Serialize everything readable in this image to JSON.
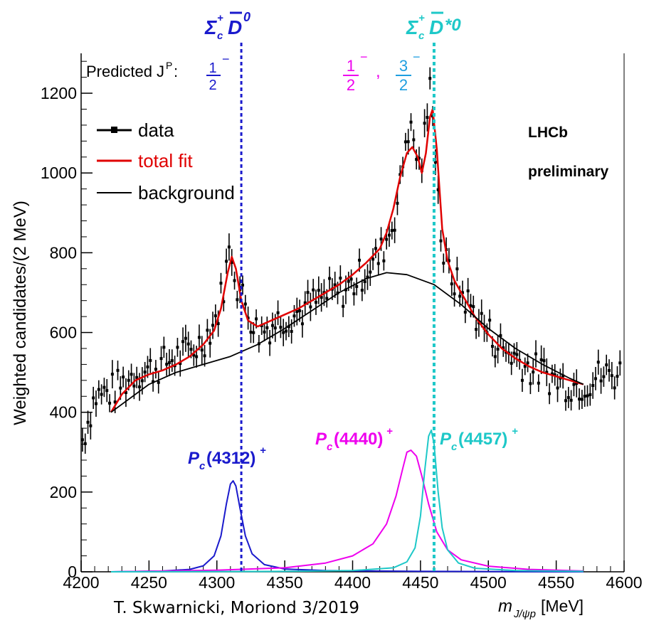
{
  "chart_data": {
    "type": "line",
    "xlabel": "m_{J/ψp} [MeV]",
    "ylabel": "Weighted candidates/(2 MeV)",
    "xlim": [
      4200,
      4600
    ],
    "ylim": [
      0,
      1300
    ],
    "x_ticks": [
      "4200",
      "4250",
      "4300",
      "4350",
      "4400",
      "4450",
      "4500",
      "4550",
      "4600"
    ],
    "y_ticks": [
      "0",
      "200",
      "400",
      "600",
      "800",
      "1000",
      "1200"
    ],
    "legend": {
      "placement": "top-left",
      "entries": [
        "data",
        "total fit",
        "background"
      ]
    },
    "experiment_label": [
      "LHCb",
      "preliminary"
    ],
    "series": [
      {
        "name": "data",
        "color": "#000000",
        "x": [
          4200,
          4210,
          4220,
          4230,
          4240,
          4250,
          4260,
          4270,
          4280,
          4290,
          4300,
          4305,
          4310,
          4315,
          4320,
          4330,
          4340,
          4350,
          4360,
          4370,
          4380,
          4390,
          4400,
          4410,
          4420,
          4430,
          4435,
          4440,
          4445,
          4450,
          4455,
          4458,
          4462,
          4466,
          4470,
          4480,
          4490,
          4500,
          4510,
          4520,
          4530,
          4540,
          4550,
          4560,
          4570,
          4580,
          4590,
          4600
        ],
        "y": [
          320,
          440,
          450,
          470,
          500,
          505,
          520,
          540,
          550,
          580,
          640,
          720,
          820,
          720,
          680,
          600,
          620,
          640,
          650,
          670,
          690,
          700,
          720,
          760,
          790,
          880,
          960,
          1120,
          1080,
          1000,
          1150,
          1240,
          1000,
          800,
          760,
          700,
          650,
          600,
          560,
          540,
          510,
          500,
          480,
          470,
          470,
          490,
          495,
          500
        ]
      },
      {
        "name": "total fit",
        "color": "#e00000",
        "x": [
          4222,
          4230,
          4240,
          4250,
          4260,
          4270,
          4280,
          4290,
          4298,
          4303,
          4308,
          4311,
          4314,
          4318,
          4323,
          4330,
          4340,
          4350,
          4360,
          4370,
          4380,
          4390,
          4400,
          4410,
          4420,
          4425,
          4430,
          4435,
          4440,
          4444,
          4448,
          4451,
          4454,
          4457,
          4459,
          4462,
          4466,
          4470,
          4475,
          4480,
          4490,
          4500,
          4510,
          4520,
          4530,
          4540,
          4550,
          4560,
          4570
        ],
        "y": [
          400,
          445,
          480,
          495,
          505,
          520,
          540,
          570,
          605,
          660,
          750,
          790,
          760,
          680,
          630,
          615,
          630,
          645,
          660,
          680,
          700,
          720,
          745,
          775,
          810,
          850,
          910,
          990,
          1050,
          1065,
          1040,
          1000,
          1050,
          1140,
          1160,
          1060,
          860,
          780,
          730,
          700,
          640,
          595,
          560,
          535,
          515,
          500,
          490,
          480,
          470
        ]
      },
      {
        "name": "background",
        "color": "#000000",
        "x": [
          4222,
          4250,
          4270,
          4290,
          4310,
          4330,
          4350,
          4370,
          4390,
          4410,
          4425,
          4440,
          4460,
          4480,
          4500,
          4520,
          4540,
          4560,
          4570
        ],
        "y": [
          400,
          470,
          500,
          520,
          540,
          570,
          610,
          655,
          700,
          735,
          750,
          745,
          720,
          670,
          610,
          560,
          520,
          485,
          470
        ]
      },
      {
        "name": "Pc(4312)+",
        "color": "#1a1acc",
        "x": [
          4222,
          4260,
          4280,
          4290,
          4298,
          4303,
          4307,
          4310,
          4312,
          4314,
          4317,
          4321,
          4326,
          4335,
          4350,
          4380,
          4450,
          4570
        ],
        "y": [
          0,
          2,
          6,
          15,
          40,
          90,
          170,
          220,
          228,
          215,
          160,
          90,
          45,
          18,
          7,
          3,
          1,
          0
        ]
      },
      {
        "name": "Pc(4440)+",
        "color": "#ee00ee",
        "x": [
          4222,
          4300,
          4350,
          4380,
          4400,
          4415,
          4425,
          4432,
          4437,
          4440,
          4443,
          4447,
          4451,
          4456,
          4462,
          4470,
          4480,
          4500,
          4530,
          4570
        ],
        "y": [
          0,
          4,
          10,
          22,
          40,
          70,
          120,
          190,
          260,
          300,
          305,
          290,
          240,
          170,
          100,
          55,
          30,
          14,
          6,
          2
        ]
      },
      {
        "name": "Pc(4457)+",
        "color": "#1ec8c8",
        "x": [
          4222,
          4350,
          4400,
          4430,
          4440,
          4446,
          4450,
          4453,
          4456,
          4458,
          4460,
          4463,
          4466,
          4470,
          4478,
          4490,
          4520,
          4570
        ],
        "y": [
          0,
          1,
          3,
          10,
          25,
          60,
          140,
          250,
          340,
          355,
          320,
          200,
          110,
          55,
          22,
          9,
          3,
          1
        ]
      }
    ],
    "thresholds": [
      {
        "x": 4318,
        "color": "#1a1acc"
      },
      {
        "x": 4460,
        "color": "#1ec8c8"
      }
    ]
  },
  "annotations": {
    "threshold_1": "Σc+ D̄0",
    "threshold_2": "Σc+ D̄*0",
    "predicted_prefix": "Predicted J",
    "predicted_sup": "P",
    "predicted_colon": ":",
    "jp_1": "1/2",
    "jp_2": "1/2",
    "jp_comma": ",",
    "jp_3": "3/2",
    "peak_1": "Pc(4312)+",
    "peak_2": "Pc(4440)+",
    "peak_3": "Pc(4457)+"
  },
  "credit": "T. Skwarnicki, Moriond 3/2019"
}
